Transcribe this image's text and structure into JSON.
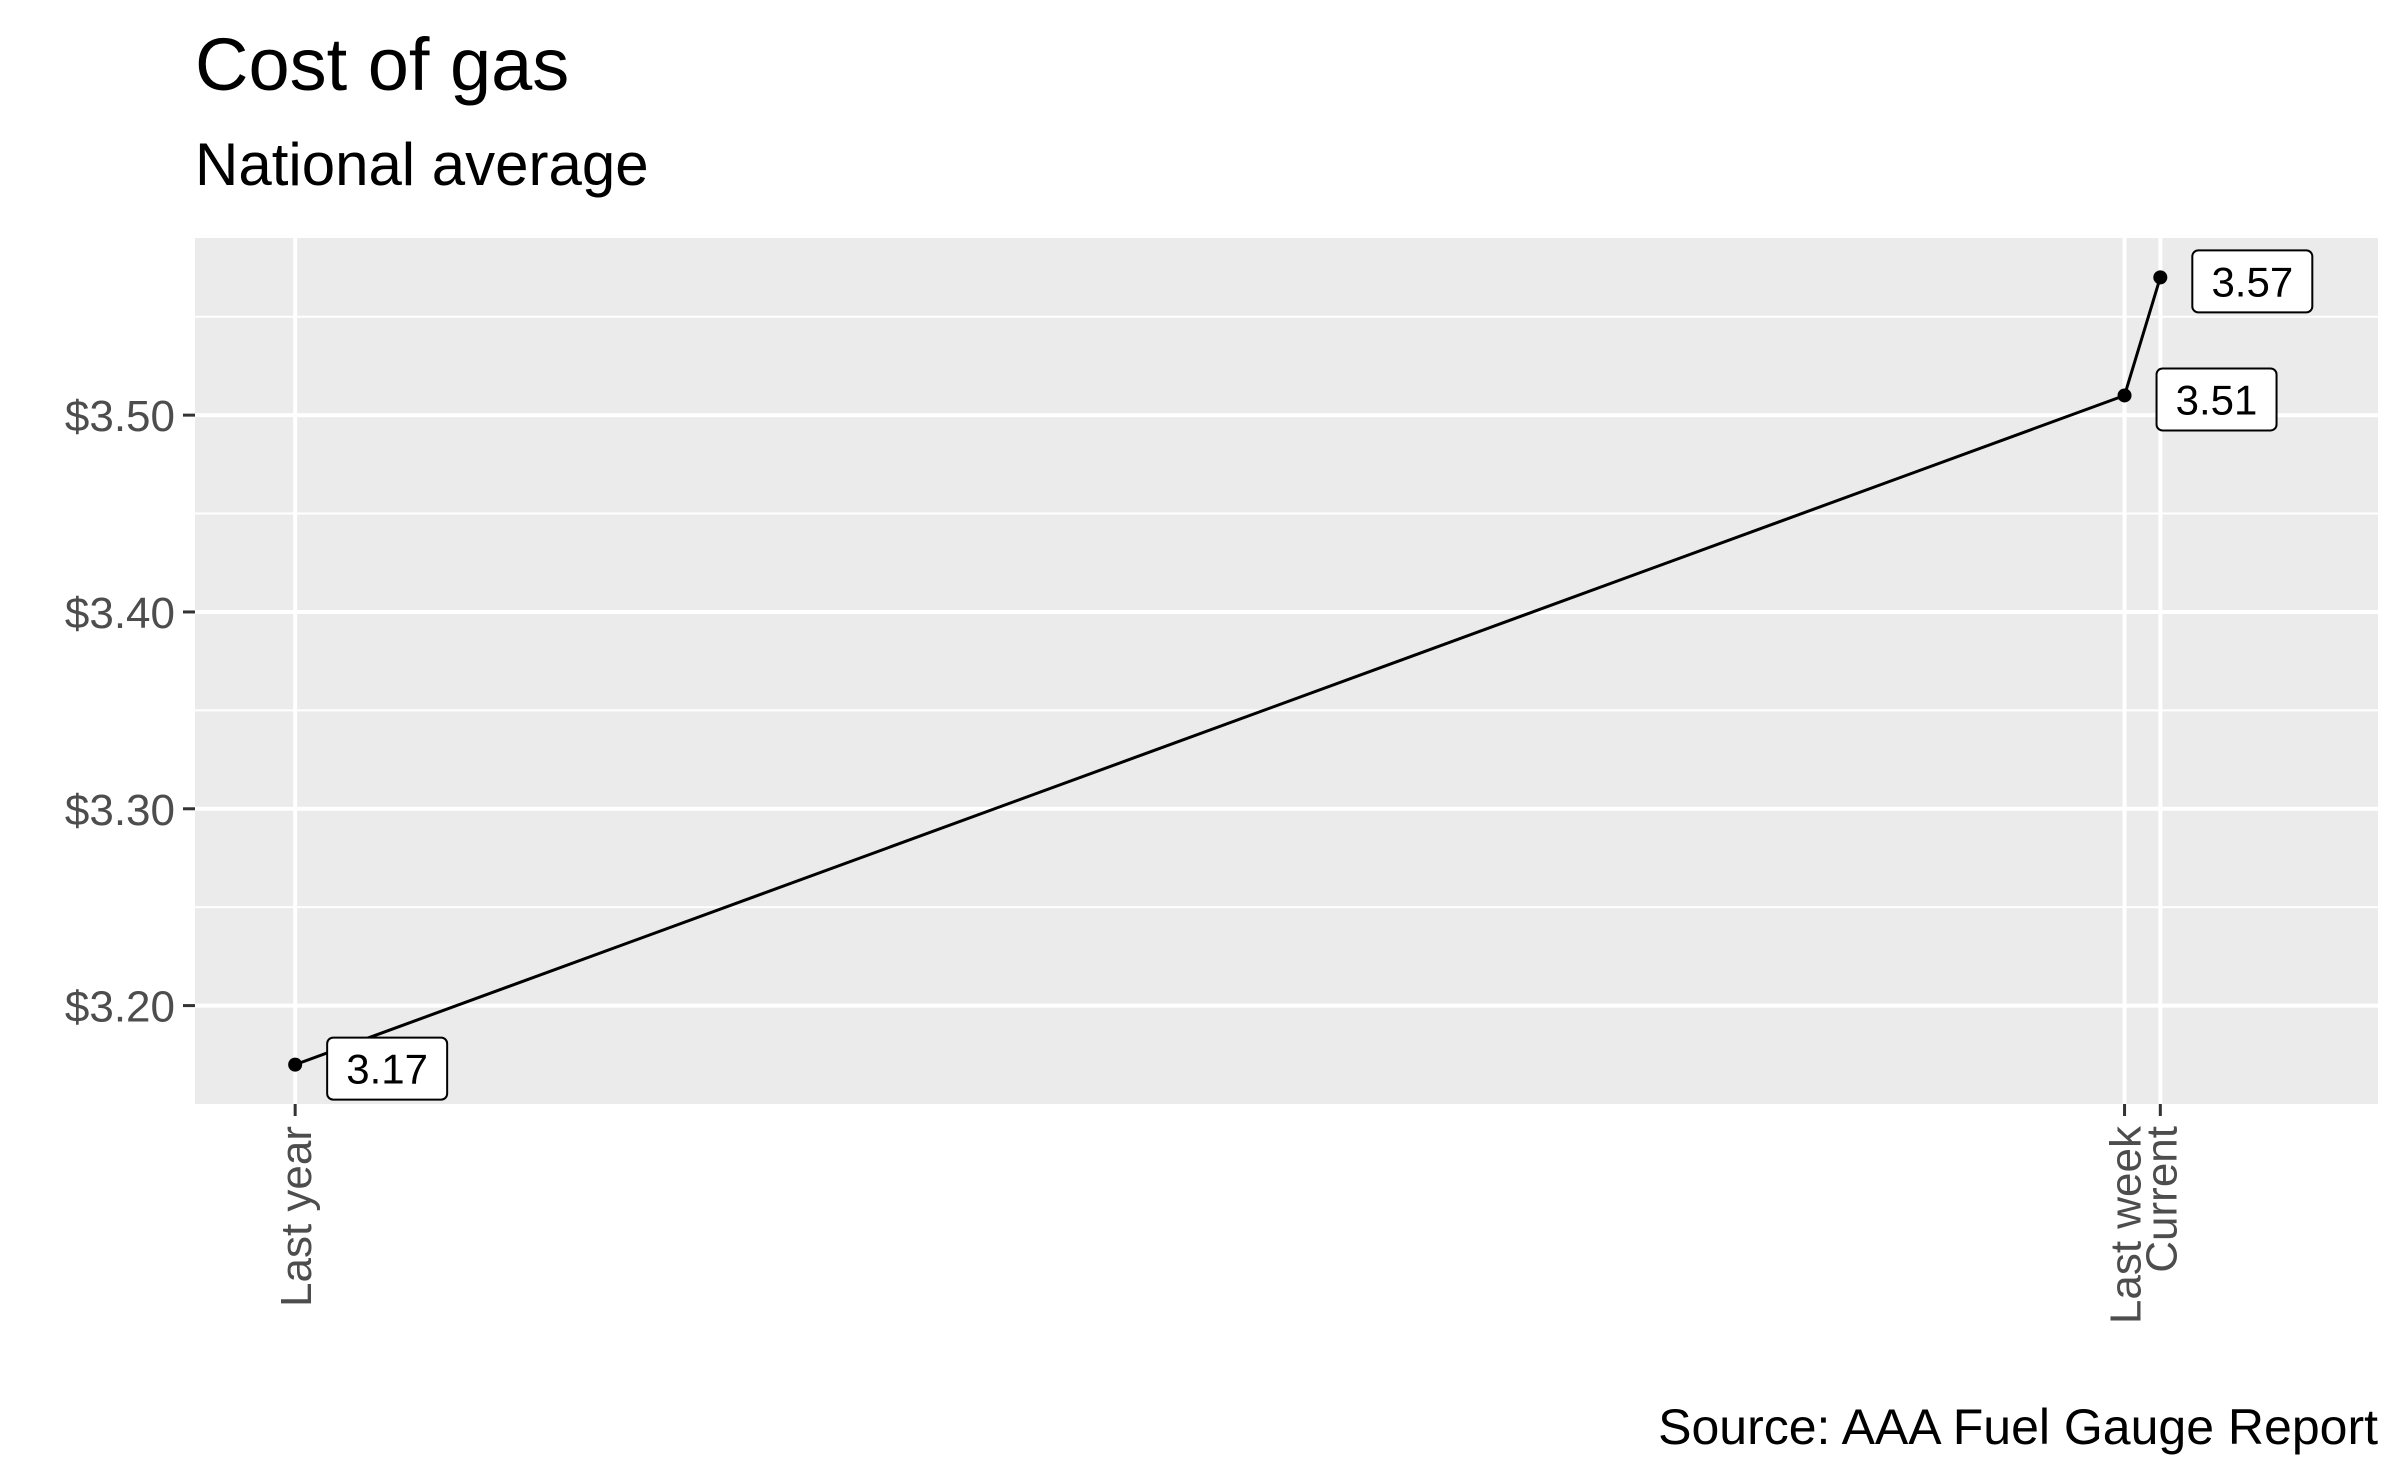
{
  "chart_data": {
    "type": "line",
    "title": "Cost of gas",
    "subtitle": "National average",
    "caption": "Source: AAA Fuel Gauge Report",
    "x_ticks": [
      {
        "label": "Last year",
        "days": 0
      },
      {
        "label": "Last week",
        "days": 358
      },
      {
        "label": "Current",
        "days": 365
      }
    ],
    "points": [
      {
        "label": "Last year",
        "days": 0,
        "value": 3.17,
        "value_label": "3.17"
      },
      {
        "label": "Last week",
        "days": 358,
        "value": 3.51,
        "value_label": "3.51"
      },
      {
        "label": "Current",
        "days": 365,
        "value": 3.57,
        "value_label": "3.57"
      }
    ],
    "y_ticks": [
      {
        "value": 3.2,
        "label": "$3.20"
      },
      {
        "value": 3.3,
        "label": "$3.30"
      },
      {
        "value": 3.4,
        "label": "$3.40"
      },
      {
        "value": 3.5,
        "label": "$3.50"
      }
    ],
    "y_minor": [
      3.25,
      3.35,
      3.45,
      3.55
    ],
    "xlim": [
      -19.6,
      407.6
    ],
    "ylim": [
      3.15,
      3.59
    ],
    "grid": true,
    "colors": {
      "panel": "#ebebeb",
      "grid": "#ffffff",
      "line": "#000000",
      "axis_text": "#4d4d4d"
    }
  }
}
